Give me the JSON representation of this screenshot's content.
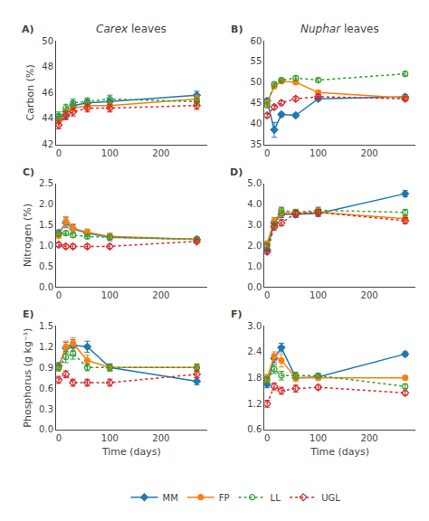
{
  "chart_data": [
    {
      "type": "line",
      "title": "Carex leaves",
      "annotations": [
        "A)"
      ],
      "ylabel": "Carbon (%)",
      "x": [
        0,
        14,
        28,
        56,
        100,
        270
      ],
      "xlim": [
        -5,
        290
      ],
      "xticks": [
        0,
        100,
        200
      ],
      "ylim": [
        42,
        50
      ],
      "yticks": [
        42,
        44,
        46,
        48,
        50
      ],
      "grid": false,
      "series": [
        {
          "name": "MM",
          "color": "#1f77b4",
          "marker": "diamond",
          "line_style": "solid",
          "values": [
            44.0,
            44.3,
            45.0,
            45.2,
            45.3,
            45.8
          ],
          "errors": [
            0.3,
            0.3,
            0.3,
            0.3,
            0.3,
            0.3
          ]
        },
        {
          "name": "FP",
          "color": "#ff7f0e",
          "marker": "circle",
          "line_style": "solid",
          "values": [
            43.8,
            44.5,
            44.8,
            45.0,
            45.0,
            45.5
          ],
          "errors": [
            0.3,
            0.3,
            0.3,
            0.3,
            0.3,
            0.3
          ]
        },
        {
          "name": "LL",
          "color": "#2ca02c",
          "marker": "circle-open",
          "line_style": "dotted",
          "values": [
            44.2,
            44.8,
            45.2,
            45.3,
            45.5,
            45.3
          ],
          "errors": [
            0.3,
            0.3,
            0.3,
            0.3,
            0.3,
            0.3
          ]
        },
        {
          "name": "UGL",
          "color": "#d62728",
          "marker": "diamond-open",
          "line_style": "dotted",
          "values": [
            43.5,
            44.2,
            44.5,
            44.8,
            44.8,
            45.0
          ],
          "errors": [
            0.3,
            0.3,
            0.3,
            0.3,
            0.3,
            0.3
          ]
        }
      ]
    },
    {
      "type": "line",
      "title": "Nuphar leaves",
      "annotations": [
        "B)"
      ],
      "x": [
        0,
        14,
        28,
        56,
        100,
        270
      ],
      "xlim": [
        -5,
        290
      ],
      "xticks": [
        0,
        100,
        200
      ],
      "ylim": [
        35,
        60
      ],
      "yticks": [
        35,
        40,
        45,
        50,
        55,
        60
      ],
      "grid": false,
      "series": [
        {
          "name": "MM",
          "color": "#1f77b4",
          "marker": "diamond",
          "line_style": "solid",
          "values": [
            45.5,
            38.5,
            42.2,
            42.0,
            46.0,
            46.5
          ],
          "errors": [
            0.5,
            1.8,
            0.5,
            0.5,
            0.5,
            0.5
          ]
        },
        {
          "name": "FP",
          "color": "#ff7f0e",
          "marker": "circle",
          "line_style": "solid",
          "values": [
            45.0,
            49.0,
            50.2,
            50.0,
            47.5,
            46.2
          ],
          "errors": [
            0.5,
            0.5,
            0.5,
            0.5,
            0.5,
            0.5
          ]
        },
        {
          "name": "LL",
          "color": "#2ca02c",
          "marker": "circle-open",
          "line_style": "dotted",
          "values": [
            44.5,
            49.5,
            50.5,
            51.0,
            50.5,
            52.0
          ],
          "errors": [
            0.5,
            0.5,
            0.5,
            0.5,
            0.5,
            0.5
          ]
        },
        {
          "name": "UGL",
          "color": "#d62728",
          "marker": "diamond-open",
          "line_style": "dotted",
          "values": [
            42.0,
            44.0,
            45.0,
            46.0,
            46.5,
            46.0
          ],
          "errors": [
            0.5,
            0.5,
            0.5,
            0.5,
            0.5,
            0.5
          ]
        }
      ]
    },
    {
      "type": "line",
      "annotations": [
        "C)"
      ],
      "ylabel": "Nitrogen (%)",
      "x": [
        0,
        14,
        28,
        56,
        100,
        270
      ],
      "xlim": [
        -5,
        290
      ],
      "xticks": [
        0,
        100,
        200
      ],
      "ylim": [
        0.0,
        2.5
      ],
      "yticks": [
        {
          "value": 0.0,
          "label": "0.0"
        },
        0.5,
        {
          "value": 1.0,
          "label": "1.0"
        },
        1.5,
        {
          "value": 2.0,
          "label": "2.0"
        },
        2.5
      ],
      "grid": false,
      "series": [
        {
          "name": "MM",
          "color": "#1f77b4",
          "marker": "diamond",
          "line_style": "solid",
          "values": [
            1.3,
            1.55,
            1.4,
            1.3,
            1.2,
            1.15
          ],
          "errors": [
            0.08,
            0.12,
            0.1,
            0.08,
            0.08,
            0.05
          ]
        },
        {
          "name": "FP",
          "color": "#ff7f0e",
          "marker": "circle",
          "line_style": "solid",
          "values": [
            1.25,
            1.58,
            1.42,
            1.32,
            1.22,
            1.15
          ],
          "errors": [
            0.08,
            0.12,
            0.1,
            0.08,
            0.08,
            0.05
          ]
        },
        {
          "name": "LL",
          "color": "#2ca02c",
          "marker": "circle-open",
          "line_style": "dotted",
          "values": [
            1.28,
            1.3,
            1.25,
            1.22,
            1.2,
            1.15
          ],
          "errors": [
            0.05,
            0.05,
            0.05,
            0.05,
            0.05,
            0.05
          ]
        },
        {
          "name": "UGL",
          "color": "#d62728",
          "marker": "diamond-open",
          "line_style": "dotted",
          "values": [
            1.02,
            0.98,
            0.98,
            0.98,
            0.98,
            1.1
          ],
          "errors": [
            0.05,
            0.05,
            0.05,
            0.05,
            0.05,
            0.05
          ]
        }
      ]
    },
    {
      "type": "line",
      "annotations": [
        "D)"
      ],
      "legend": "bottom",
      "x": [
        0,
        14,
        28,
        56,
        100,
        270
      ],
      "xlim": [
        -5,
        290
      ],
      "xticks": [
        0,
        100,
        200
      ],
      "ylim": [
        0.0,
        5.0
      ],
      "yticks": [
        {
          "value": 0.0,
          "label": "0.0"
        },
        {
          "value": 1.0,
          "label": "1.0"
        },
        {
          "value": 2.0,
          "label": "2.0"
        },
        {
          "value": 3.0,
          "label": "3.0"
        },
        {
          "value": 4.0,
          "label": "4.0"
        },
        {
          "value": 5.0,
          "label": "5.0"
        }
      ],
      "grid": false,
      "series": [
        {
          "name": "MM",
          "color": "#1f77b4",
          "marker": "diamond",
          "line_style": "solid",
          "values": [
            1.8,
            3.1,
            3.5,
            3.5,
            3.55,
            4.5
          ],
          "errors": [
            0.1,
            0.15,
            0.15,
            0.15,
            0.15,
            0.15
          ]
        },
        {
          "name": "FP",
          "color": "#ff7f0e",
          "marker": "circle",
          "line_style": "solid",
          "values": [
            2.1,
            3.2,
            3.6,
            3.55,
            3.6,
            3.3
          ],
          "errors": [
            0.1,
            0.15,
            0.2,
            0.15,
            0.15,
            0.15
          ]
        },
        {
          "name": "LL",
          "color": "#2ca02c",
          "marker": "circle-open",
          "line_style": "dotted",
          "values": [
            2.0,
            3.0,
            3.7,
            3.6,
            3.7,
            3.6
          ],
          "errors": [
            0.1,
            0.15,
            0.15,
            0.15,
            0.15,
            0.15
          ]
        },
        {
          "name": "UGL",
          "color": "#d62728",
          "marker": "diamond-open",
          "line_style": "dotted",
          "values": [
            1.7,
            2.9,
            3.1,
            3.55,
            3.6,
            3.2
          ],
          "errors": [
            0.1,
            0.15,
            0.15,
            0.15,
            0.15,
            0.15
          ]
        }
      ]
    },
    {
      "type": "line",
      "annotations": [
        "E)"
      ],
      "ylabel": "Phosphorus (g kg⁻¹)",
      "xlabel": "Time (days)",
      "x": [
        0,
        14,
        28,
        56,
        100,
        270
      ],
      "xlim": [
        -5,
        290
      ],
      "xticks": [
        0,
        100,
        200
      ],
      "ylim": [
        0.0,
        1.5
      ],
      "yticks": [
        {
          "value": 0.0,
          "label": "0.0"
        },
        0.3,
        0.6,
        0.9,
        1.2,
        1.5
      ],
      "grid": false,
      "series": [
        {
          "name": "MM",
          "color": "#1f77b4",
          "marker": "diamond",
          "line_style": "solid",
          "values": [
            0.92,
            1.18,
            1.22,
            1.2,
            0.9,
            0.7
          ],
          "errors": [
            0.05,
            0.08,
            0.08,
            0.08,
            0.05,
            0.05
          ]
        },
        {
          "name": "FP",
          "color": "#ff7f0e",
          "marker": "circle",
          "line_style": "solid",
          "values": [
            0.9,
            1.2,
            1.25,
            1.0,
            0.9,
            0.9
          ],
          "errors": [
            0.05,
            0.08,
            0.08,
            0.08,
            0.05,
            0.05
          ]
        },
        {
          "name": "LL",
          "color": "#2ca02c",
          "marker": "circle-open",
          "line_style": "dotted",
          "values": [
            0.9,
            1.05,
            1.1,
            0.9,
            0.9,
            0.9
          ],
          "errors": [
            0.05,
            0.08,
            0.08,
            0.05,
            0.05,
            0.05
          ]
        },
        {
          "name": "UGL",
          "color": "#d62728",
          "marker": "diamond-open",
          "line_style": "dotted",
          "values": [
            0.72,
            0.8,
            0.68,
            0.68,
            0.68,
            0.8
          ],
          "errors": [
            0.05,
            0.05,
            0.05,
            0.05,
            0.05,
            0.05
          ]
        }
      ]
    },
    {
      "type": "line",
      "annotations": [
        "F)"
      ],
      "xlabel": "Time (days)",
      "x": [
        0,
        14,
        28,
        56,
        100,
        270
      ],
      "xlim": [
        -5,
        290
      ],
      "xticks": [
        0,
        100,
        200
      ],
      "ylim": [
        0.6,
        3.0
      ],
      "yticks": [
        0.6,
        1.2,
        1.8,
        2.4,
        {
          "value": 3.0,
          "label": "3.0"
        }
      ],
      "grid": false,
      "series": [
        {
          "name": "MM",
          "color": "#1f77b4",
          "marker": "diamond",
          "line_style": "solid",
          "values": [
            1.65,
            2.25,
            2.5,
            1.8,
            1.82,
            2.35
          ],
          "errors": [
            0.08,
            0.1,
            0.1,
            0.08,
            0.05,
            0.05
          ]
        },
        {
          "name": "FP",
          "color": "#ff7f0e",
          "marker": "circle",
          "line_style": "solid",
          "values": [
            1.8,
            2.3,
            2.2,
            1.8,
            1.8,
            1.8
          ],
          "errors": [
            0.08,
            0.1,
            0.15,
            0.08,
            0.05,
            0.05
          ]
        },
        {
          "name": "LL",
          "color": "#2ca02c",
          "marker": "circle-open",
          "line_style": "dotted",
          "values": [
            1.75,
            2.0,
            1.85,
            1.85,
            1.85,
            1.6
          ],
          "errors": [
            0.08,
            0.1,
            0.1,
            0.08,
            0.05,
            0.05
          ]
        },
        {
          "name": "UGL",
          "color": "#d62728",
          "marker": "diamond-open",
          "line_style": "dotted",
          "values": [
            1.2,
            1.6,
            1.5,
            1.55,
            1.58,
            1.45
          ],
          "errors": [
            0.08,
            0.08,
            0.08,
            0.08,
            0.05,
            0.05
          ]
        }
      ]
    }
  ]
}
